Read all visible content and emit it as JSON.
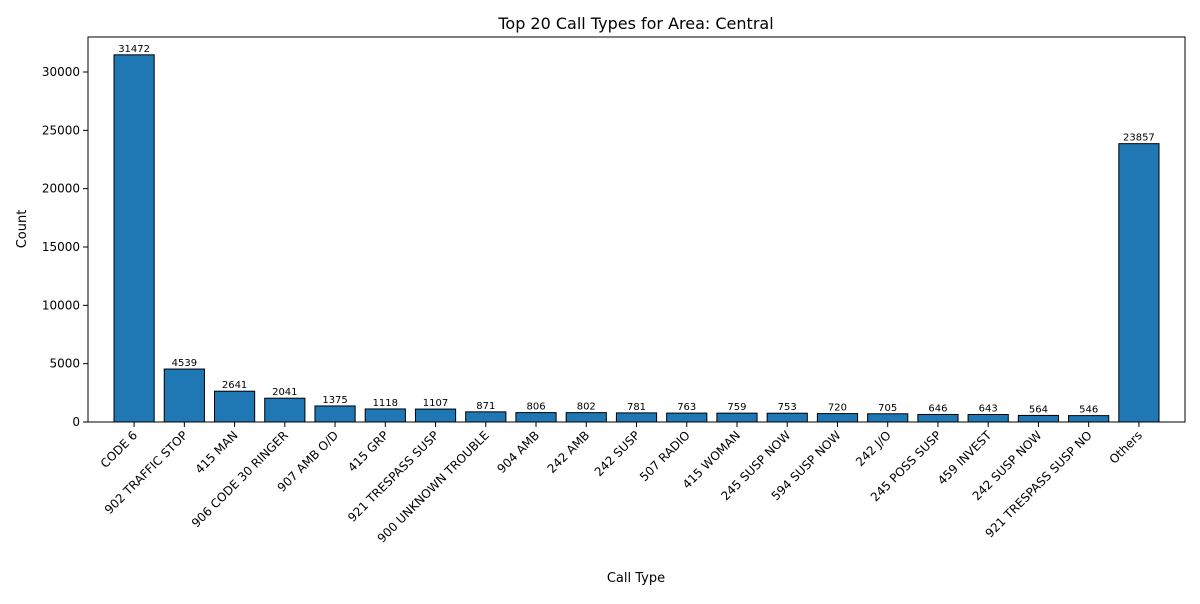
{
  "chart_data": {
    "type": "bar",
    "title": "Top 20 Call Types for Area: Central",
    "xlabel": "Call Type",
    "ylabel": "Count",
    "categories": [
      "CODE 6",
      "902 TRAFFIC STOP",
      "415 MAN",
      "906 CODE 30 RINGER",
      "907 AMB O/D",
      "415 GRP",
      "921 TRESPASS SUSP",
      "900 UNKNOWN TROUBLE",
      "904 AMB",
      "242 AMB",
      "242 SUSP",
      "507 RADIO",
      "415 WOMAN",
      "245 SUSP NOW",
      "594 SUSP NOW",
      "242 J/O",
      "245 POSS SUSP",
      "459 INVEST",
      "242 SUSP NOW",
      "921 TRESPASS SUSP NO",
      "Others"
    ],
    "values": [
      31472,
      4539,
      2641,
      2041,
      1375,
      1118,
      1107,
      871,
      806,
      802,
      781,
      763,
      759,
      753,
      720,
      705,
      646,
      643,
      564,
      546,
      23857
    ],
    "data_labels": [
      "31472",
      "4539",
      "2641",
      "2041",
      "1375",
      "1118",
      "1107",
      "871",
      "806",
      "802",
      "781",
      "763",
      "759",
      "753",
      "720",
      "705",
      "646",
      "643",
      "564",
      "546",
      "23857"
    ],
    "ylim": [
      0,
      33000
    ],
    "yticks": [
      0,
      5000,
      10000,
      15000,
      20000,
      25000,
      30000
    ],
    "ytick_labels": [
      "0",
      "5000",
      "10000",
      "15000",
      "20000",
      "25000",
      "30000"
    ],
    "grid": false,
    "bar_color": "#1f77b4",
    "bar_edge_color": "#000000"
  }
}
